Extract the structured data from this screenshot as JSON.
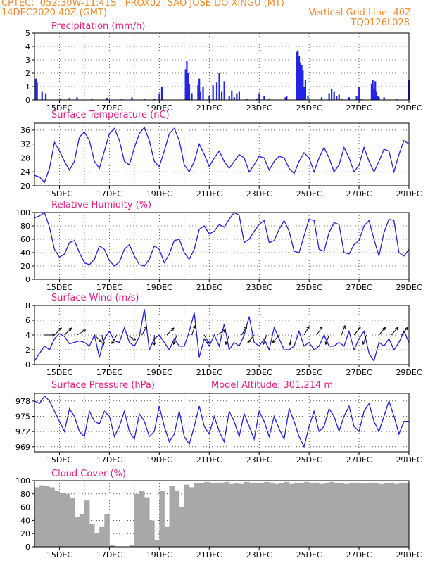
{
  "header": {
    "line1": "CPTEC:  052:30W-11:41S   PROX02: SAO JOSE DO XINGU (MT)",
    "line2_left": "14DEC2020 40Z (GMT)",
    "line2_right": "Vertical Grid Line: 40Z",
    "line3_right": "TQ0126L028"
  },
  "colors": {
    "header": "#f08a2c",
    "title": "#e0207f",
    "series": "#2020e0",
    "bars": "#2424e8",
    "cloud": "#a8a8a8",
    "arrow": "#000000"
  },
  "x_axis": {
    "labels": [
      "15DEC",
      "17DEC",
      "19DEC",
      "21DEC",
      "23DEC",
      "25DEC",
      "27DEC",
      "29DEC"
    ],
    "label_positions": [
      15,
      17,
      19,
      21,
      23,
      25,
      27,
      29
    ],
    "range": [
      14,
      29
    ]
  },
  "chart_data": [
    {
      "type": "bar",
      "title": "Precipitation (mm/h)",
      "ylim": [
        0,
        5
      ],
      "yticks": [
        0,
        1,
        2,
        3,
        4,
        5
      ],
      "x": [
        14.05,
        14.1,
        14.3,
        14.45,
        15.05,
        15.4,
        15.7,
        16.3,
        16.9,
        17.5,
        17.9,
        18.4,
        18.8,
        19.0,
        19.1,
        20.05,
        20.1,
        20.15,
        20.2,
        20.3,
        20.55,
        20.6,
        20.65,
        20.75,
        21.0,
        21.15,
        21.3,
        21.4,
        21.5,
        21.6,
        21.8,
        21.9,
        22.0,
        22.1,
        22.2,
        22.5,
        22.9,
        23.0,
        23.2,
        23.4,
        24.05,
        24.1,
        24.5,
        24.55,
        24.6,
        24.65,
        24.7,
        24.75,
        24.8,
        24.85,
        24.95,
        25.5,
        25.8,
        25.9,
        26.0,
        26.1,
        26.2,
        26.3,
        26.6,
        26.9,
        27.0,
        27.1,
        27.5,
        27.55,
        27.6,
        27.65,
        27.7,
        27.75,
        27.8,
        28.0,
        28.5,
        29.0
      ],
      "values": [
        1.6,
        1.3,
        0.6,
        0.5,
        0.1,
        0.15,
        0.2,
        0.1,
        0.15,
        0.1,
        0.2,
        0.1,
        0.1,
        0.5,
        1.0,
        2.3,
        2.9,
        2.0,
        1.2,
        0.5,
        1.1,
        1.6,
        0.6,
        1.0,
        0.3,
        1.1,
        1.3,
        2.0,
        0.6,
        1.4,
        0.3,
        0.7,
        0.2,
        0.5,
        0.6,
        0.1,
        0.1,
        0.5,
        0.3,
        0.1,
        0.2,
        0.3,
        3.6,
        3.7,
        3.3,
        2.8,
        2.6,
        2.2,
        1.0,
        1.5,
        0.3,
        0.2,
        0.5,
        0.8,
        0.6,
        0.3,
        0.4,
        0.1,
        0.2,
        0.3,
        1.0,
        0.1,
        1.2,
        1.5,
        0.8,
        1.4,
        0.6,
        0.3,
        0.2,
        0.2,
        0.1,
        1.5
      ]
    },
    {
      "type": "line",
      "title": "Surface Temperature (nC)",
      "ylim": [
        20,
        38
      ],
      "yticks": [
        20,
        24,
        28,
        32,
        36
      ],
      "x": [
        14.0,
        14.2,
        14.4,
        14.6,
        14.8,
        15.0,
        15.2,
        15.4,
        15.6,
        15.8,
        16.0,
        16.2,
        16.4,
        16.6,
        16.8,
        17.0,
        17.2,
        17.4,
        17.6,
        17.8,
        18.0,
        18.2,
        18.4,
        18.6,
        18.8,
        19.0,
        19.2,
        19.4,
        19.6,
        19.8,
        20.0,
        20.2,
        20.4,
        20.6,
        20.8,
        21.0,
        21.2,
        21.4,
        21.6,
        21.8,
        22.0,
        22.2,
        22.4,
        22.6,
        22.8,
        23.0,
        23.2,
        23.4,
        23.6,
        23.8,
        24.0,
        24.2,
        24.4,
        24.6,
        24.8,
        25.0,
        25.2,
        25.4,
        25.6,
        25.8,
        26.0,
        26.2,
        26.4,
        26.6,
        26.8,
        27.0,
        27.2,
        27.4,
        27.6,
        27.8,
        28.0,
        28.2,
        28.4,
        28.6,
        28.8,
        29.0
      ],
      "values": [
        23,
        22.5,
        21,
        25,
        32.5,
        30,
        27,
        24.5,
        27,
        34,
        35.5,
        33,
        27,
        25,
        30,
        35,
        36.5,
        33,
        27,
        26,
        31,
        35,
        36.8,
        33,
        27,
        25.5,
        30,
        35,
        36.5,
        33,
        26,
        24,
        27,
        32,
        29,
        25.5,
        28,
        30,
        27,
        25,
        27,
        29,
        28,
        24,
        26,
        28.5,
        28,
        24.5,
        27,
        28.5,
        28,
        25,
        23.5,
        27,
        29.5,
        28,
        24,
        28,
        31,
        28,
        24,
        26,
        31,
        28,
        24,
        26,
        31,
        27,
        24,
        27,
        30.5,
        30,
        24,
        29,
        33,
        32
      ]
    },
    {
      "type": "line",
      "title": "Relative Humidity (%)",
      "ylim": [
        0,
        100
      ],
      "yticks": [
        0,
        20,
        40,
        60,
        80,
        100
      ],
      "x": [
        14.0,
        14.2,
        14.4,
        14.6,
        14.8,
        15.0,
        15.2,
        15.4,
        15.6,
        15.8,
        16.0,
        16.2,
        16.4,
        16.6,
        16.8,
        17.0,
        17.2,
        17.4,
        17.6,
        17.8,
        18.0,
        18.2,
        18.4,
        18.6,
        18.8,
        19.0,
        19.2,
        19.4,
        19.6,
        19.8,
        20.0,
        20.2,
        20.4,
        20.6,
        20.8,
        21.0,
        21.2,
        21.4,
        21.6,
        21.8,
        22.0,
        22.2,
        22.4,
        22.6,
        22.8,
        23.0,
        23.2,
        23.4,
        23.6,
        23.8,
        24.0,
        24.2,
        24.4,
        24.6,
        24.8,
        25.0,
        25.2,
        25.4,
        25.6,
        25.8,
        26.0,
        26.2,
        26.4,
        26.6,
        26.8,
        27.0,
        27.2,
        27.4,
        27.6,
        27.8,
        28.0,
        28.2,
        28.4,
        28.6,
        28.8,
        29.0
      ],
      "values": [
        92,
        95,
        100,
        78,
        45,
        33,
        38,
        55,
        58,
        40,
        25,
        22,
        30,
        50,
        45,
        28,
        20,
        26,
        45,
        52,
        35,
        22,
        20,
        30,
        50,
        45,
        25,
        38,
        58,
        60,
        40,
        30,
        45,
        75,
        80,
        68,
        72,
        82,
        78,
        90,
        100,
        96,
        55,
        60,
        72,
        82,
        88,
        55,
        58,
        75,
        88,
        72,
        42,
        40,
        65,
        90,
        88,
        45,
        42,
        70,
        85,
        82,
        40,
        38,
        52,
        58,
        80,
        88,
        60,
        35,
        70,
        90,
        88,
        40,
        35,
        45
      ]
    },
    {
      "type": "line",
      "title": "Surface Wind (m/s)",
      "ylim": [
        0,
        8
      ],
      "yticks": [
        0,
        2,
        4,
        6,
        8
      ],
      "x": [
        14.0,
        14.2,
        14.4,
        14.6,
        14.8,
        15.0,
        15.2,
        15.4,
        15.6,
        15.8,
        16.0,
        16.2,
        16.4,
        16.6,
        16.8,
        17.0,
        17.2,
        17.4,
        17.6,
        17.8,
        18.0,
        18.2,
        18.4,
        18.6,
        18.8,
        19.0,
        19.2,
        19.4,
        19.6,
        19.8,
        20.0,
        20.2,
        20.4,
        20.6,
        20.8,
        21.0,
        21.2,
        21.4,
        21.6,
        21.8,
        22.0,
        22.2,
        22.4,
        22.6,
        22.8,
        23.0,
        23.2,
        23.4,
        23.6,
        23.8,
        24.0,
        24.2,
        24.4,
        24.6,
        24.8,
        25.0,
        25.2,
        25.4,
        25.6,
        25.8,
        26.0,
        26.2,
        26.4,
        26.6,
        26.8,
        27.0,
        27.2,
        27.4,
        27.6,
        27.8,
        28.0,
        28.2,
        28.4,
        28.6,
        28.8,
        29.0
      ],
      "values": [
        0.5,
        1.5,
        2.5,
        2.0,
        3.5,
        4.2,
        3.8,
        2.8,
        3.0,
        3.2,
        3.0,
        2.5,
        4.0,
        1.0,
        3.5,
        4.5,
        3.2,
        3.0,
        5.0,
        3.0,
        2.5,
        3.8,
        7.5,
        2.0,
        3.5,
        4.0,
        3.0,
        2.0,
        3.5,
        2.5,
        2.5,
        4.5,
        7.0,
        1.0,
        3.5,
        2.5,
        4.0,
        2.5,
        5.5,
        2.0,
        3.0,
        2.5,
        4.0,
        6.5,
        3.0,
        2.5,
        3.5,
        2.0,
        5.0,
        3.5,
        2.0,
        2.0,
        2.5,
        4.5,
        2.5,
        3.0,
        2.0,
        2.5,
        4.0,
        2.5,
        2.5,
        3.0,
        2.5,
        4.5,
        2.0,
        3.5,
        4.5,
        1.5,
        0.5,
        3.0,
        2.5,
        3.5,
        2.0,
        3.0,
        4.5,
        3.0
      ]
    },
    {
      "type": "line",
      "title": "Surface Pressure (hPa)",
      "subtitle": "Model Altitude: 301.214 m",
      "ylim": [
        968,
        979.5
      ],
      "yticks": [
        969,
        972,
        975,
        978
      ],
      "x": [
        14.0,
        14.2,
        14.4,
        14.6,
        14.8,
        15.0,
        15.2,
        15.4,
        15.6,
        15.8,
        16.0,
        16.2,
        16.4,
        16.6,
        16.8,
        17.0,
        17.2,
        17.4,
        17.6,
        17.8,
        18.0,
        18.2,
        18.4,
        18.6,
        18.8,
        19.0,
        19.2,
        19.4,
        19.6,
        19.8,
        20.0,
        20.2,
        20.4,
        20.6,
        20.8,
        21.0,
        21.2,
        21.4,
        21.6,
        21.8,
        22.0,
        22.2,
        22.4,
        22.6,
        22.8,
        23.0,
        23.2,
        23.4,
        23.6,
        23.8,
        24.0,
        24.2,
        24.4,
        24.6,
        24.8,
        25.0,
        25.2,
        25.4,
        25.6,
        25.8,
        26.0,
        26.2,
        26.4,
        26.6,
        26.8,
        27.0,
        27.2,
        27.4,
        27.6,
        27.8,
        28.0,
        28.2,
        28.4,
        28.6,
        28.8,
        29.0
      ],
      "values": [
        978,
        977.5,
        979,
        978,
        976,
        974,
        972,
        976.5,
        975,
        972,
        971,
        976,
        974,
        973.5,
        976,
        975,
        971,
        973,
        976,
        972,
        970.5,
        975.5,
        974,
        971,
        972,
        977,
        973,
        970,
        971.5,
        976,
        971,
        969.5,
        973,
        977,
        973,
        971.5,
        975,
        972,
        970,
        976,
        974,
        971,
        975.5,
        973,
        970.5,
        976,
        974,
        971,
        975,
        972.5,
        970.5,
        976.5,
        974,
        971,
        969,
        973,
        976,
        972,
        973,
        976.5,
        975,
        972,
        975,
        977,
        973,
        972,
        976,
        977.5,
        974,
        972,
        975,
        978,
        975,
        971.5,
        974,
        974
      ]
    },
    {
      "type": "area",
      "title": "Cloud Cover (%)",
      "ylim": [
        0,
        100
      ],
      "yticks": [
        0,
        20,
        40,
        60,
        80,
        100
      ],
      "x": [
        14.0,
        14.2,
        14.4,
        14.6,
        14.8,
        15.0,
        15.2,
        15.4,
        15.6,
        15.8,
        16.0,
        16.2,
        16.4,
        16.6,
        16.8,
        17.0,
        17.2,
        17.4,
        17.6,
        17.8,
        18.0,
        18.2,
        18.4,
        18.6,
        18.8,
        19.0,
        19.2,
        19.4,
        19.6,
        19.8,
        20.0,
        20.2,
        20.4,
        20.6,
        20.8,
        21.0,
        21.2,
        21.4,
        21.6,
        21.8,
        22.0,
        22.2,
        22.4,
        22.6,
        22.8,
        23.0,
        23.2,
        23.4,
        23.6,
        23.8,
        24.0,
        24.2,
        24.4,
        24.6,
        24.8,
        25.0,
        25.2,
        25.4,
        25.6,
        25.8,
        26.0,
        26.2,
        26.4,
        26.6,
        26.8,
        27.0,
        27.2,
        27.4,
        27.6,
        27.8,
        28.0,
        28.2,
        28.4,
        28.6,
        28.8,
        29.0
      ],
      "values": [
        90,
        93,
        92,
        90,
        85,
        82,
        80,
        74,
        45,
        50,
        70,
        35,
        20,
        30,
        50,
        3,
        0,
        0,
        0,
        2,
        80,
        85,
        75,
        40,
        10,
        85,
        30,
        92,
        85,
        60,
        94,
        90,
        96,
        96,
        98,
        96,
        97,
        97,
        98,
        95,
        96,
        95,
        98,
        96,
        97,
        96,
        98,
        97,
        95,
        96,
        98,
        95,
        97,
        96,
        98,
        96,
        97,
        95,
        96,
        98,
        97,
        96,
        95,
        96,
        97,
        96,
        96,
        97,
        96,
        95,
        96,
        97,
        95,
        96,
        97,
        96
      ]
    }
  ],
  "wind_arrows": {
    "x": [
      14.4,
      14.8,
      15.2,
      15.7,
      16.4,
      16.7,
      17.3,
      17.7,
      18.3,
      18.8,
      19.3,
      19.7,
      20.3,
      20.8,
      21.3,
      21.8,
      22.3,
      22.8,
      23.3,
      23.8,
      24.3,
      24.8,
      25.3,
      25.8,
      26.3,
      26.8,
      27.3,
      27.8,
      28.3,
      28.7
    ],
    "dir_deg": [
      90,
      45,
      45,
      60,
      135,
      170,
      210,
      120,
      30,
      180,
      45,
      200,
      20,
      150,
      60,
      200,
      30,
      220,
      200,
      220,
      190,
      30,
      35,
      200,
      20,
      40,
      200,
      40,
      40,
      40
    ]
  }
}
